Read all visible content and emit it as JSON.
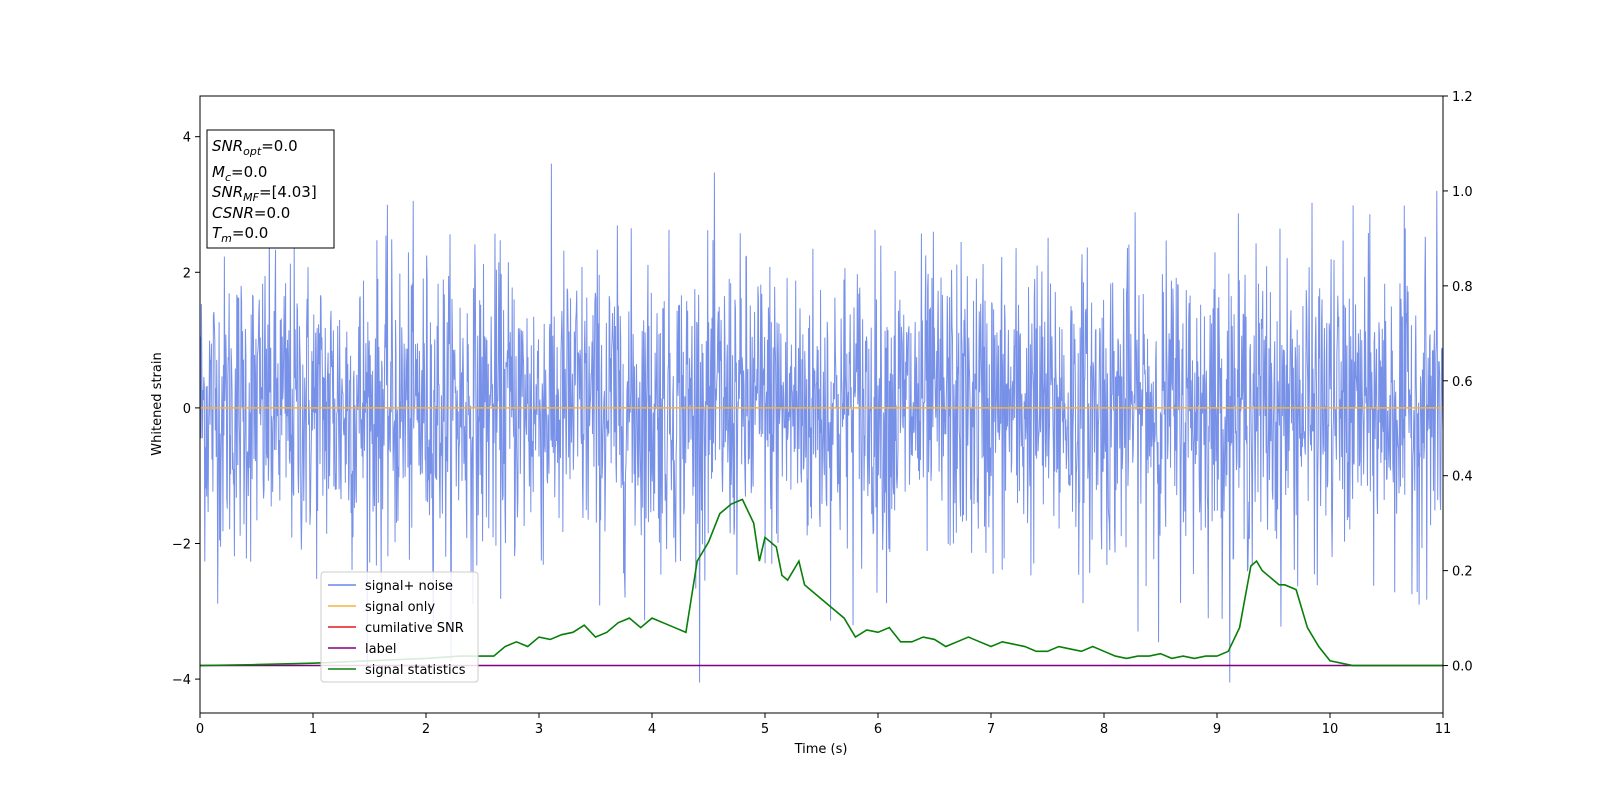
{
  "chart_data": {
    "type": "line",
    "xlabel": "Time (s)",
    "ylabel": "Whitened strain",
    "xlim": [
      0,
      11
    ],
    "ylim": [
      -4.5,
      4.6
    ],
    "y2lim": [
      -0.1,
      1.2
    ],
    "xticks": [
      "0",
      "1",
      "2",
      "3",
      "4",
      "5",
      "6",
      "7",
      "8",
      "9",
      "10",
      "11"
    ],
    "yticks": [
      "4",
      "2",
      "0",
      "−2",
      "−4"
    ],
    "y2ticks": [
      "1.2",
      "1.0",
      "0.8",
      "0.6",
      "0.4",
      "0.2",
      "0.0"
    ],
    "grid": false,
    "legend_position": "lower-left",
    "colors": {
      "noise": "#6b87e6",
      "signal": "#f5b342",
      "cumulative": "#e41a1c",
      "label": "#800080",
      "stat": "#087f08"
    },
    "legend": [
      {
        "key": "noise",
        "label": "signal+ noise"
      },
      {
        "key": "signal",
        "label": "signal only"
      },
      {
        "key": "cumulative",
        "label": "cumilative SNR"
      },
      {
        "key": "label",
        "label": "label"
      },
      {
        "key": "stat",
        "label": "signal statistics"
      }
    ],
    "info_box": {
      "snr_opt": {
        "base": "SNR",
        "sub": "opt",
        "value": "=0.0"
      },
      "mc": {
        "base": "M",
        "sub": "c",
        "value": "=0.0"
      },
      "snr_mf": {
        "base": "SNR",
        "sub": "MF",
        "value": "=[4.03]"
      },
      "csnr": {
        "base": "CSNR",
        "value": "=0.0"
      },
      "tm": {
        "base": "T",
        "sub": "m",
        "value": "=0.0"
      }
    },
    "series": [
      {
        "name": "signal statistics",
        "axis": "right",
        "x": [
          0,
          0.5,
          1,
          1.5,
          2,
          2.3,
          2.6,
          2.7,
          2.8,
          2.9,
          3.0,
          3.1,
          3.2,
          3.3,
          3.4,
          3.5,
          3.6,
          3.7,
          3.8,
          3.9,
          4.0,
          4.1,
          4.2,
          4.3,
          4.4,
          4.5,
          4.6,
          4.7,
          4.75,
          4.8,
          4.9,
          4.95,
          5.0,
          5.1,
          5.15,
          5.2,
          5.3,
          5.35,
          5.4,
          5.5,
          5.6,
          5.7,
          5.8,
          5.9,
          6.0,
          6.1,
          6.2,
          6.3,
          6.4,
          6.5,
          6.6,
          6.7,
          6.8,
          6.9,
          7.0,
          7.1,
          7.2,
          7.3,
          7.4,
          7.5,
          7.6,
          7.7,
          7.8,
          7.9,
          8.0,
          8.1,
          8.2,
          8.3,
          8.4,
          8.5,
          8.6,
          8.7,
          8.8,
          8.9,
          9.0,
          9.1,
          9.2,
          9.3,
          9.35,
          9.4,
          9.5,
          9.55,
          9.6,
          9.7,
          9.8,
          9.9,
          10.0,
          10.2,
          10.5,
          11.0
        ],
        "y": [
          0.0,
          0.002,
          0.005,
          0.01,
          0.015,
          0.02,
          0.02,
          0.04,
          0.05,
          0.04,
          0.06,
          0.055,
          0.065,
          0.07,
          0.085,
          0.06,
          0.07,
          0.09,
          0.1,
          0.08,
          0.1,
          0.09,
          0.08,
          0.07,
          0.22,
          0.26,
          0.32,
          0.34,
          0.345,
          0.35,
          0.3,
          0.22,
          0.27,
          0.25,
          0.19,
          0.18,
          0.22,
          0.17,
          0.16,
          0.14,
          0.12,
          0.1,
          0.06,
          0.075,
          0.07,
          0.08,
          0.05,
          0.05,
          0.06,
          0.055,
          0.04,
          0.05,
          0.06,
          0.05,
          0.04,
          0.05,
          0.045,
          0.04,
          0.03,
          0.03,
          0.04,
          0.035,
          0.03,
          0.04,
          0.03,
          0.02,
          0.015,
          0.02,
          0.02,
          0.025,
          0.015,
          0.02,
          0.015,
          0.02,
          0.02,
          0.03,
          0.08,
          0.21,
          0.22,
          0.2,
          0.18,
          0.17,
          0.17,
          0.16,
          0.08,
          0.04,
          0.01,
          0.0,
          0.0,
          0.0
        ]
      },
      {
        "name": "label",
        "axis": "right",
        "x": [
          0,
          11
        ],
        "y": [
          0.0,
          0.0
        ]
      },
      {
        "name": "signal only",
        "axis": "left",
        "x": [
          0,
          11
        ],
        "y": [
          0.0,
          0.0
        ]
      }
    ]
  }
}
